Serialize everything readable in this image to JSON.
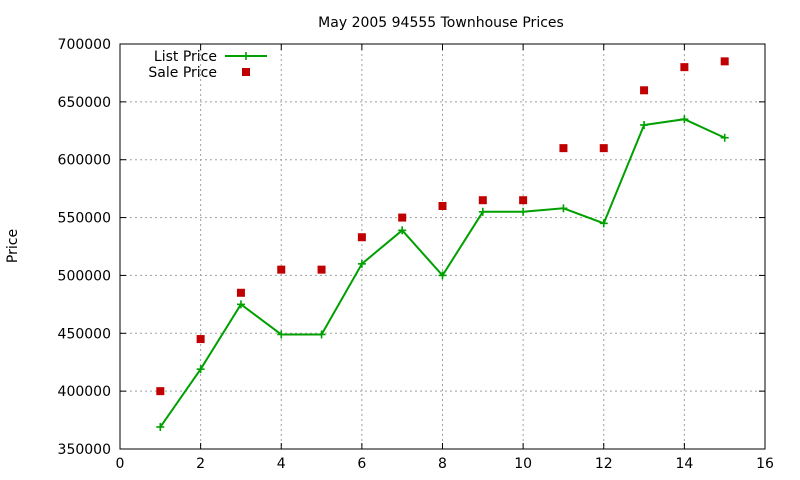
{
  "chart_data": {
    "type": "line",
    "title": "May 2005 94555 Townhouse Prices",
    "xlabel": "",
    "ylabel": "Price",
    "xlim": [
      0,
      16
    ],
    "ylim": [
      350000,
      700000
    ],
    "xticks": [
      0,
      2,
      4,
      6,
      8,
      10,
      12,
      14,
      16
    ],
    "yticks": [
      350000,
      400000,
      450000,
      500000,
      550000,
      600000,
      650000,
      700000
    ],
    "grid": true,
    "legend_position": "top-left",
    "series": [
      {
        "name": "List Price",
        "style": "line-plus",
        "color": "#00a000",
        "x": [
          1,
          2,
          3,
          4,
          5,
          6,
          7,
          8,
          9,
          10,
          11,
          12,
          13,
          14,
          15
        ],
        "y": [
          369000,
          419000,
          475000,
          449000,
          449000,
          510000,
          539000,
          500000,
          555000,
          555000,
          558000,
          545000,
          630000,
          635000,
          619000
        ]
      },
      {
        "name": "Sale Price",
        "style": "square-points",
        "color": "#c00000",
        "x": [
          1,
          2,
          3,
          4,
          5,
          6,
          7,
          8,
          9,
          10,
          11,
          12,
          13,
          14,
          15
        ],
        "y": [
          400000,
          445000,
          485000,
          505000,
          505000,
          533000,
          550000,
          560000,
          565000,
          565000,
          610000,
          610000,
          660000,
          680000,
          685000
        ]
      }
    ]
  }
}
